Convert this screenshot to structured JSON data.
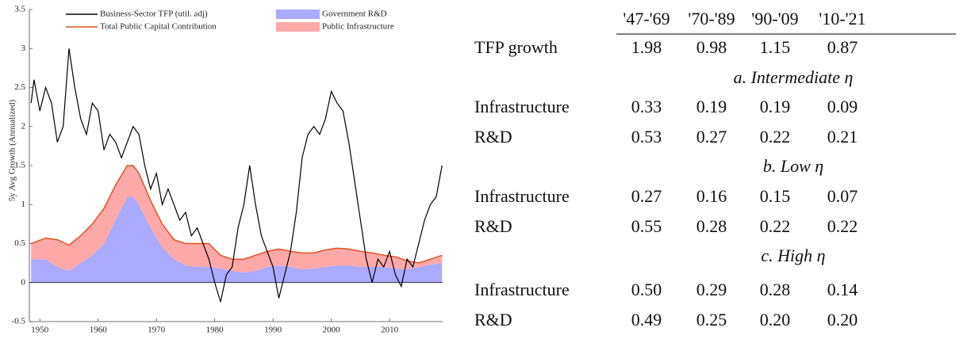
{
  "chart_data": {
    "type": "line",
    "ylabel": "5y Avg Growth (Annualized)",
    "xlim": [
      1948.2,
      2019.1
    ],
    "ylim": [
      -0.5,
      3.5
    ],
    "xticks": [
      1950,
      1960,
      1970,
      1980,
      1990,
      2000,
      2010
    ],
    "yticks": [
      -0.5,
      0,
      0.5,
      1,
      1.5,
      2,
      2.5,
      3,
      3.5
    ],
    "grid": false,
    "legend": "upper",
    "series": [
      {
        "name": "Business-Sector TFP (util. adj)",
        "kind": "line",
        "color": "#000000",
        "x": [
          1948.5,
          1949,
          1950,
          1951,
          1952,
          1953,
          1954,
          1955,
          1956,
          1957,
          1958,
          1959,
          1960,
          1961,
          1962,
          1963,
          1964,
          1965,
          1966,
          1967,
          1968,
          1969,
          1970,
          1971,
          1972,
          1973,
          1974,
          1975,
          1976,
          1977,
          1978,
          1979,
          1980,
          1981,
          1982,
          1983,
          1984,
          1985,
          1986,
          1987,
          1988,
          1989,
          1990,
          1991,
          1992,
          1993,
          1994,
          1995,
          1996,
          1997,
          1998,
          1999,
          2000,
          2001,
          2002,
          2003,
          2004,
          2005,
          2006,
          2007,
          2008,
          2009,
          2010,
          2011,
          2012,
          2013,
          2014,
          2015,
          2016,
          2017,
          2018,
          2019
        ],
        "values": [
          2.3,
          2.6,
          2.2,
          2.5,
          2.3,
          1.8,
          2.0,
          3.0,
          2.5,
          2.1,
          1.9,
          2.3,
          2.2,
          1.7,
          1.9,
          1.8,
          1.6,
          1.8,
          2.0,
          1.9,
          1.5,
          1.2,
          1.4,
          1.0,
          1.2,
          1.0,
          0.8,
          0.9,
          0.6,
          0.7,
          0.5,
          0.3,
          0.0,
          -0.25,
          0.1,
          0.2,
          0.7,
          1.0,
          1.5,
          1.0,
          0.6,
          0.4,
          0.2,
          -0.2,
          0.1,
          0.4,
          0.9,
          1.6,
          1.9,
          2.0,
          1.9,
          2.1,
          2.45,
          2.3,
          2.2,
          1.8,
          1.3,
          0.8,
          0.3,
          0.0,
          0.3,
          0.2,
          0.4,
          0.1,
          -0.05,
          0.3,
          0.2,
          0.5,
          0.8,
          1.0,
          1.1,
          1.5
        ]
      },
      {
        "name": "Total Public Capital Contribution",
        "kind": "line",
        "color": "#e0521f",
        "x": [
          1948.5,
          1951,
          1953,
          1955,
          1957,
          1959,
          1961,
          1963,
          1965,
          1966,
          1967,
          1969,
          1971,
          1973,
          1975,
          1977,
          1979,
          1981,
          1983,
          1985,
          1987,
          1989,
          1991,
          1993,
          1995,
          1997,
          1999,
          2001,
          2003,
          2005,
          2007,
          2009,
          2011,
          2013,
          2015,
          2017,
          2019
        ],
        "values": [
          0.5,
          0.57,
          0.55,
          0.48,
          0.6,
          0.75,
          0.95,
          1.25,
          1.5,
          1.5,
          1.4,
          1.05,
          0.75,
          0.55,
          0.5,
          0.5,
          0.5,
          0.35,
          0.3,
          0.3,
          0.35,
          0.4,
          0.43,
          0.4,
          0.38,
          0.38,
          0.42,
          0.44,
          0.43,
          0.4,
          0.38,
          0.35,
          0.33,
          0.28,
          0.25,
          0.3,
          0.35
        ]
      },
      {
        "name": "Government R&D",
        "kind": "area",
        "color": "#aaaaff",
        "x": [
          1948.5,
          1951,
          1953,
          1955,
          1957,
          1959,
          1961,
          1963,
          1965,
          1966,
          1967,
          1969,
          1971,
          1973,
          1975,
          1977,
          1979,
          1981,
          1983,
          1985,
          1987,
          1989,
          1991,
          1993,
          1995,
          1997,
          1999,
          2001,
          2003,
          2005,
          2007,
          2009,
          2011,
          2013,
          2015,
          2017,
          2019
        ],
        "values": [
          0.3,
          0.3,
          0.2,
          0.15,
          0.25,
          0.35,
          0.5,
          0.8,
          1.1,
          1.1,
          1.0,
          0.7,
          0.45,
          0.3,
          0.22,
          0.2,
          0.2,
          0.18,
          0.15,
          0.13,
          0.15,
          0.2,
          0.22,
          0.2,
          0.17,
          0.18,
          0.2,
          0.22,
          0.22,
          0.2,
          0.2,
          0.2,
          0.18,
          0.17,
          0.2,
          0.23,
          0.25
        ]
      },
      {
        "name": "Public Infrastructure",
        "kind": "area",
        "stack": true,
        "color": "#ffa8a8",
        "x": [
          1948.5,
          1951,
          1953,
          1955,
          1957,
          1959,
          1961,
          1963,
          1965,
          1966,
          1967,
          1969,
          1971,
          1973,
          1975,
          1977,
          1979,
          1981,
          1983,
          1985,
          1987,
          1989,
          1991,
          1993,
          1995,
          1997,
          1999,
          2001,
          2003,
          2005,
          2007,
          2009,
          2011,
          2013,
          2015,
          2017,
          2019
        ],
        "values": [
          0.2,
          0.27,
          0.35,
          0.33,
          0.35,
          0.4,
          0.45,
          0.45,
          0.4,
          0.4,
          0.4,
          0.35,
          0.3,
          0.25,
          0.28,
          0.3,
          0.3,
          0.17,
          0.15,
          0.17,
          0.2,
          0.2,
          0.21,
          0.2,
          0.21,
          0.2,
          0.22,
          0.22,
          0.21,
          0.2,
          0.18,
          0.15,
          0.15,
          0.11,
          0.05,
          0.07,
          0.1
        ]
      }
    ]
  },
  "table": {
    "columns": [
      "'47-'69",
      "'70-'89",
      "'90-'09",
      "'10-'21"
    ],
    "rows": [
      {
        "label": "TFP growth",
        "cells": [
          "1.98",
          "0.98",
          "1.15",
          "0.87"
        ]
      },
      {
        "section": "a. Intermediate η"
      },
      {
        "label": "Infrastructure",
        "cells": [
          "0.33",
          "0.19",
          "0.19",
          "0.09"
        ]
      },
      {
        "label": "R&D",
        "cells": [
          "0.53",
          "0.27",
          "0.22",
          "0.21"
        ]
      },
      {
        "section": "b. Low η"
      },
      {
        "label": "Infrastructure",
        "cells": [
          "0.27",
          "0.16",
          "0.15",
          "0.07"
        ]
      },
      {
        "label": "R&D",
        "cells": [
          "0.55",
          "0.28",
          "0.22",
          "0.22"
        ]
      },
      {
        "section": "c. High η"
      },
      {
        "label": "Infrastructure",
        "cells": [
          "0.50",
          "0.29",
          "0.28",
          "0.14"
        ]
      },
      {
        "label": "R&D",
        "cells": [
          "0.49",
          "0.25",
          "0.20",
          "0.20"
        ]
      }
    ]
  }
}
